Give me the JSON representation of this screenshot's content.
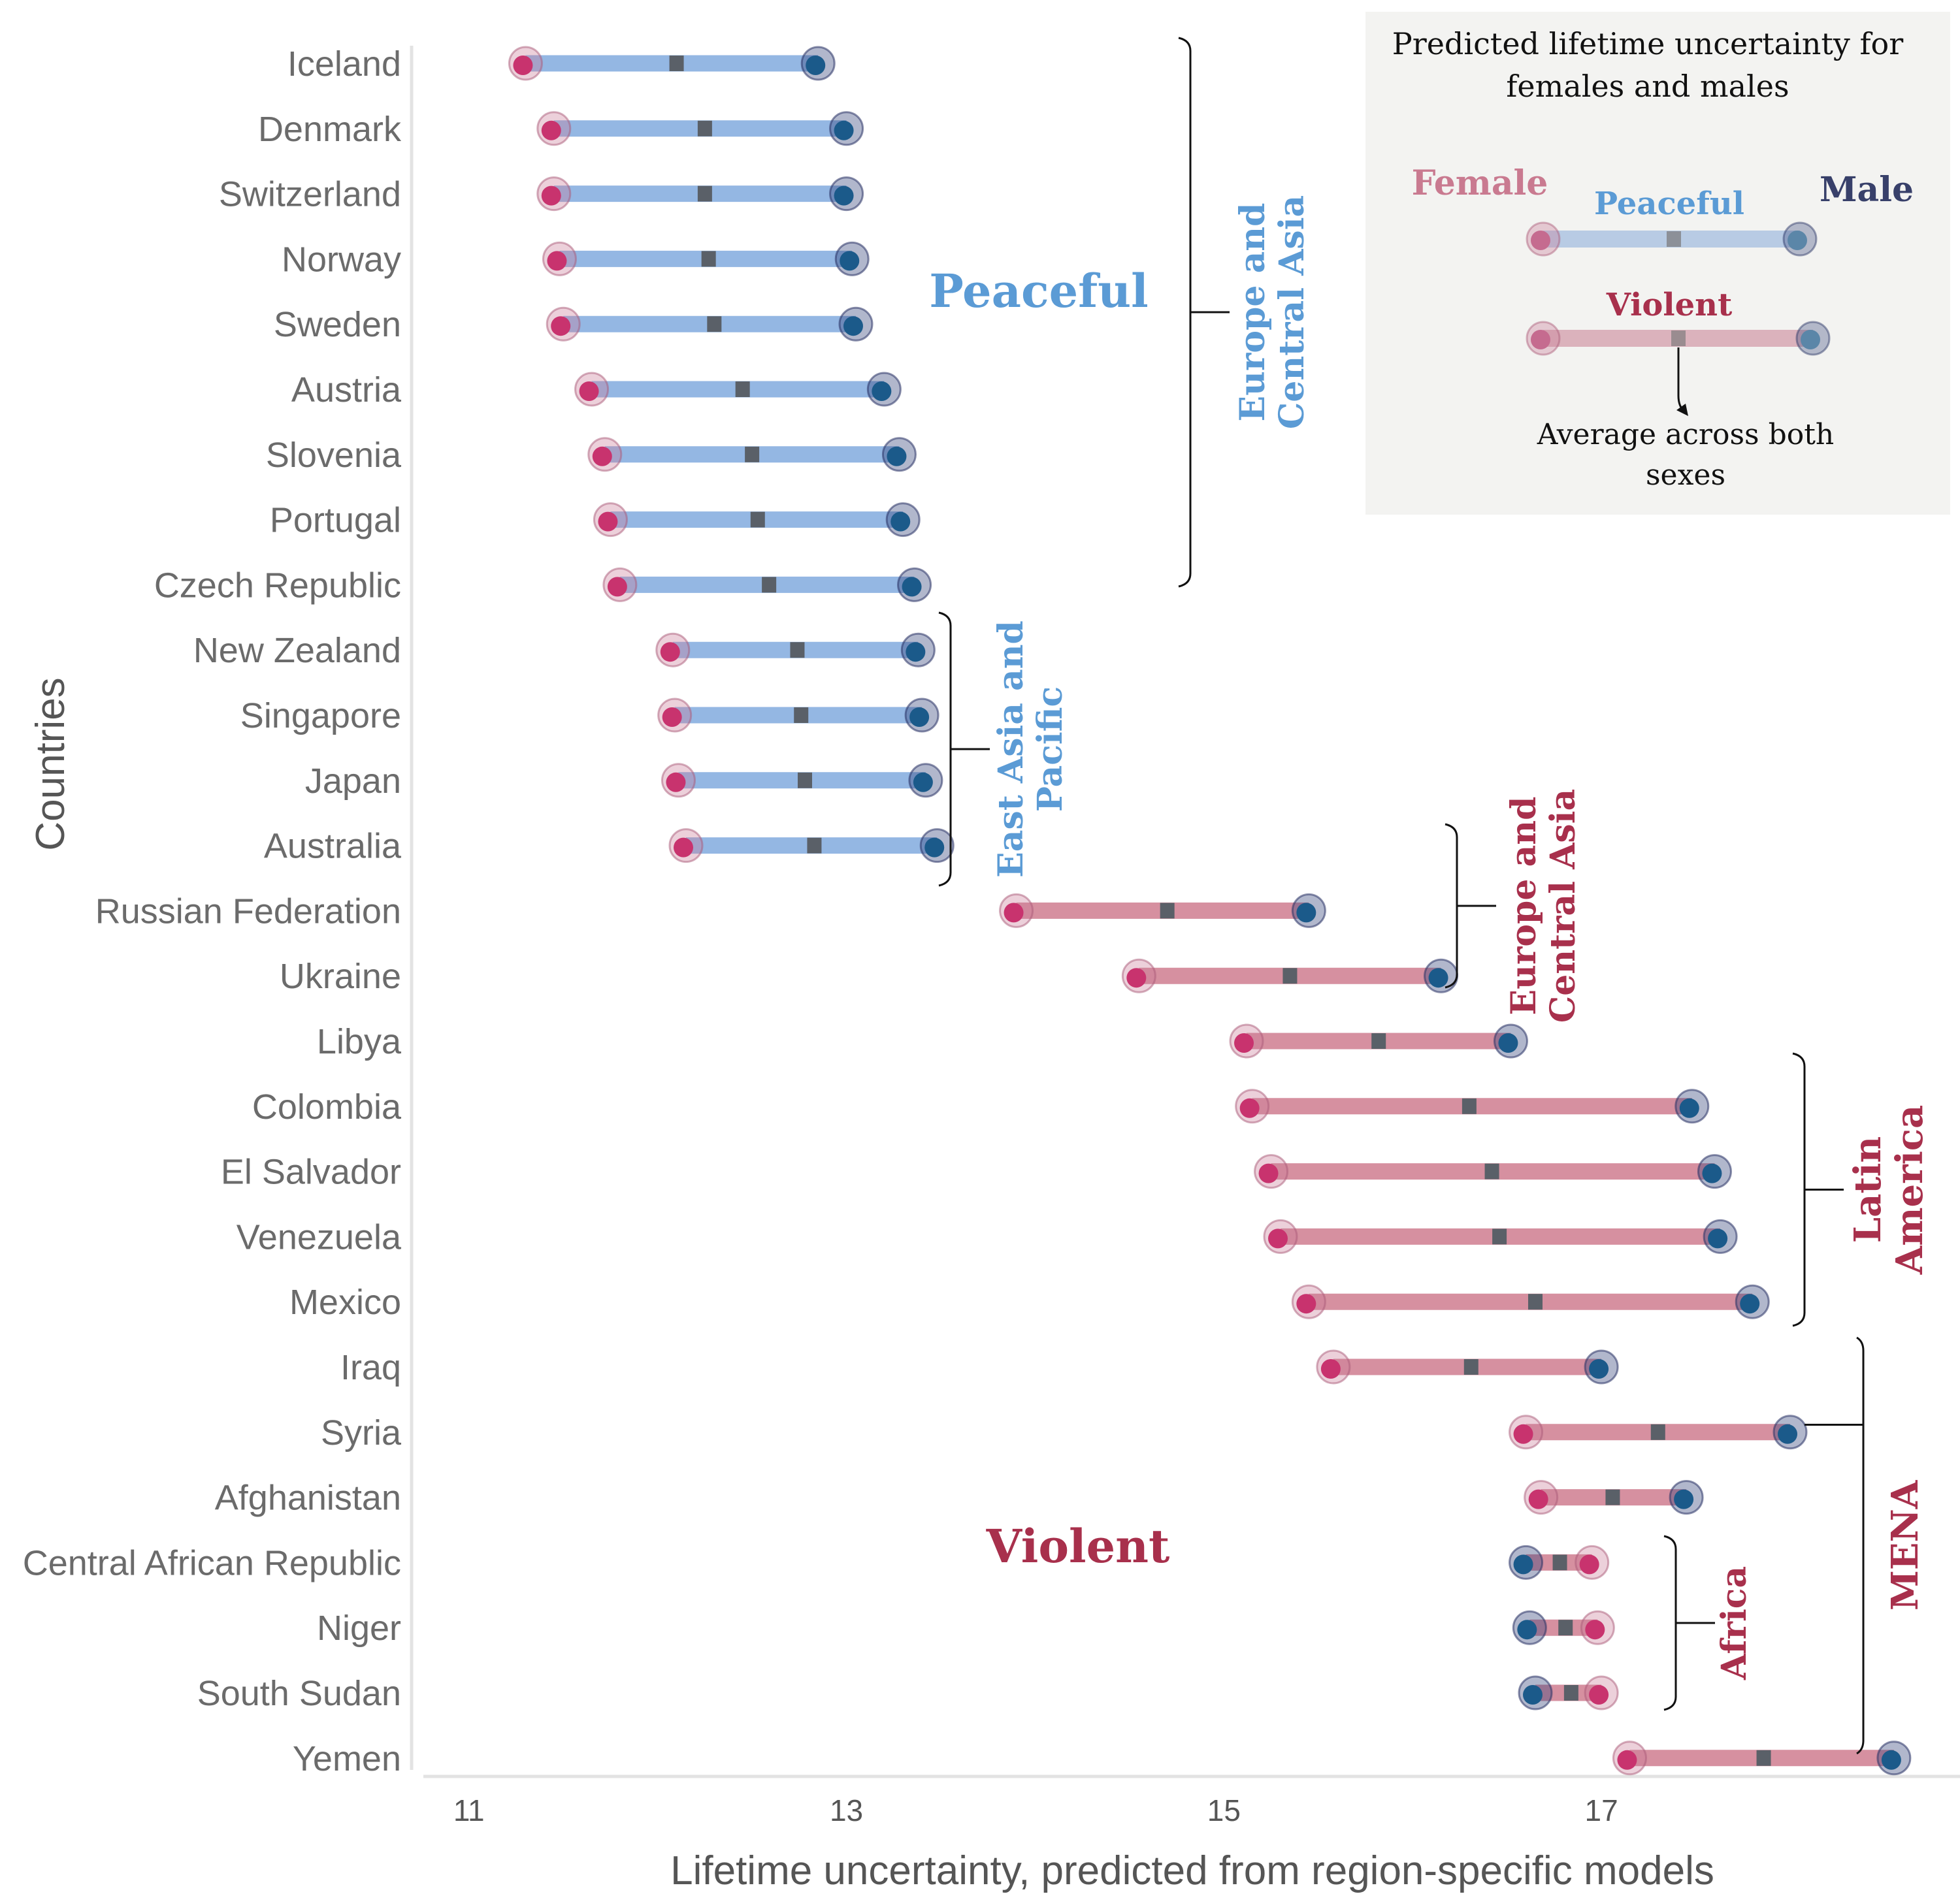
{
  "chart_data": {
    "type": "dumbbell",
    "xlabel": "Lifetime uncertainty, predicted from region-specific models",
    "ylabel": "Countries",
    "xlim": [
      10.8,
      18.9
    ],
    "xticks": [
      11,
      13,
      15,
      17
    ],
    "colors": {
      "peaceful": "#94b7e3",
      "violent": "#d690a0",
      "female_dot": "#c8336e",
      "male_dot": "#1b5a8a",
      "peaceful_text": "#5b9bd5",
      "violent_text": "#a8304c",
      "female_legend_text": "#c97a90",
      "male_legend_text": "#38406a",
      "mean_marker": "#5a6068"
    },
    "rows": [
      {
        "country": "Iceland",
        "group": "peaceful",
        "female": 11.3,
        "male": 12.85,
        "mean": 12.1
      },
      {
        "country": "Denmark",
        "group": "peaceful",
        "female": 11.45,
        "male": 13.0,
        "mean": 12.25
      },
      {
        "country": "Switzerland",
        "group": "peaceful",
        "female": 11.45,
        "male": 13.0,
        "mean": 12.25
      },
      {
        "country": "Norway",
        "group": "peaceful",
        "female": 11.48,
        "male": 13.03,
        "mean": 12.27
      },
      {
        "country": "Sweden",
        "group": "peaceful",
        "female": 11.5,
        "male": 13.05,
        "mean": 12.3
      },
      {
        "country": "Austria",
        "group": "peaceful",
        "female": 11.65,
        "male": 13.2,
        "mean": 12.45
      },
      {
        "country": "Slovenia",
        "group": "peaceful",
        "female": 11.72,
        "male": 13.28,
        "mean": 12.5
      },
      {
        "country": "Portugal",
        "group": "peaceful",
        "female": 11.75,
        "male": 13.3,
        "mean": 12.53
      },
      {
        "country": "Czech Republic",
        "group": "peaceful",
        "female": 11.8,
        "male": 13.36,
        "mean": 12.59
      },
      {
        "country": "New Zealand",
        "group": "peaceful",
        "female": 12.08,
        "male": 13.38,
        "mean": 12.74
      },
      {
        "country": "Singapore",
        "group": "peaceful",
        "female": 12.09,
        "male": 13.4,
        "mean": 12.76
      },
      {
        "country": "Japan",
        "group": "peaceful",
        "female": 12.11,
        "male": 13.42,
        "mean": 12.78
      },
      {
        "country": "Australia",
        "group": "peaceful",
        "female": 12.15,
        "male": 13.48,
        "mean": 12.83
      },
      {
        "country": "Russian Federation",
        "group": "violent",
        "female": 13.9,
        "male": 15.45,
        "mean": 14.7
      },
      {
        "country": "Ukraine",
        "group": "violent",
        "female": 14.55,
        "male": 16.15,
        "mean": 15.35
      },
      {
        "country": "Libya",
        "group": "violent",
        "female": 15.12,
        "male": 16.52,
        "mean": 15.82
      },
      {
        "country": "Colombia",
        "group": "violent",
        "female": 15.15,
        "male": 17.48,
        "mean": 16.3
      },
      {
        "country": "El Salvador",
        "group": "violent",
        "female": 15.25,
        "male": 17.6,
        "mean": 16.42
      },
      {
        "country": "Venezuela",
        "group": "violent",
        "female": 15.3,
        "male": 17.63,
        "mean": 16.46
      },
      {
        "country": "Mexico",
        "group": "violent",
        "female": 15.45,
        "male": 17.8,
        "mean": 16.65
      },
      {
        "country": "Iraq",
        "group": "violent",
        "female": 15.58,
        "male": 17.0,
        "mean": 16.31
      },
      {
        "country": "Syria",
        "group": "violent",
        "female": 16.6,
        "male": 18.0,
        "mean": 17.3
      },
      {
        "country": "Afghanistan",
        "group": "violent",
        "female": 16.68,
        "male": 17.45,
        "mean": 17.06
      },
      {
        "country": "Central African Republic",
        "group": "violent",
        "female": 16.95,
        "male": 16.6,
        "mean": 16.78
      },
      {
        "country": "Niger",
        "group": "violent",
        "female": 16.98,
        "male": 16.62,
        "mean": 16.81
      },
      {
        "country": "South Sudan",
        "group": "violent",
        "female": 17.0,
        "male": 16.65,
        "mean": 16.84
      },
      {
        "country": "Yemen",
        "group": "violent",
        "female": 17.15,
        "male": 18.55,
        "mean": 17.86
      }
    ],
    "group_labels": {
      "peaceful": "Peaceful",
      "violent": "Violent"
    },
    "regions": [
      {
        "label": [
          "Europe and",
          "Central Asia"
        ],
        "group": "peaceful",
        "from": 0,
        "to": 8
      },
      {
        "label": [
          "East Asia and",
          "Pacific"
        ],
        "group": "peaceful",
        "from": 9,
        "to": 12
      },
      {
        "label": [
          "Europe and",
          "Central Asia"
        ],
        "group": "violent",
        "from": 13,
        "to": 14
      },
      {
        "label": [
          "Latin",
          "America"
        ],
        "group": "violent",
        "from": 16,
        "to": 19
      },
      {
        "label": [
          "Africa"
        ],
        "group": "violent",
        "from": 23,
        "to": 25
      },
      {
        "label": [
          "MENA"
        ],
        "group": "violent",
        "from": 20,
        "to": 26
      }
    ],
    "legend": {
      "title_lines": [
        "Predicted lifetime uncertainty for",
        "females and males"
      ],
      "female": "Female",
      "male": "Male",
      "peaceful": "Peaceful",
      "violent": "Violent",
      "note_lines": [
        "Average across both",
        "sexes"
      ]
    }
  }
}
